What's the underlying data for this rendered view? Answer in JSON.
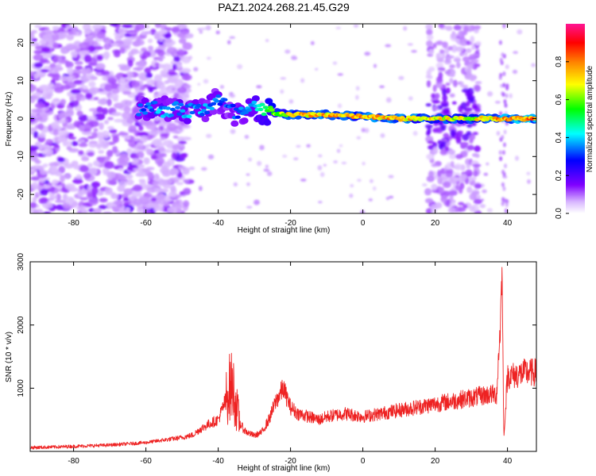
{
  "title": "PAZ1.2024.268.21.45.G29",
  "chart_data": [
    {
      "type": "heatmap",
      "xlabel": "Height of straight line (km)",
      "ylabel": "Frequency (Hz)",
      "xlim": [
        -92,
        48
      ],
      "ylim": [
        -25,
        25
      ],
      "xticks": [
        -80,
        -60,
        -40,
        -20,
        0,
        20,
        40
      ],
      "yticks": [
        -20,
        -10,
        0,
        10,
        20
      ],
      "colorbar": {
        "label": "Normalized spectral amplitude",
        "range": [
          0.0,
          1.0
        ],
        "ticks": [
          0.0,
          0.2,
          0.4,
          0.6,
          0.8
        ],
        "colormap": [
          "#ffffff",
          "#8000ff",
          "#0000ff",
          "#00ffff",
          "#00ff00",
          "#ffff00",
          "#ff8000",
          "#ff0000",
          "#ff00a0"
        ]
      },
      "dominant_ridge": [
        {
          "height_km": -62,
          "freq_hz": 3.0,
          "amp": 0.35
        },
        {
          "height_km": -55,
          "freq_hz": 2.5,
          "amp": 0.4
        },
        {
          "height_km": -45,
          "freq_hz": 2.0,
          "amp": 0.4
        },
        {
          "height_km": -40,
          "freq_hz": 5.0,
          "amp": 0.35
        },
        {
          "height_km": -35,
          "freq_hz": 1.0,
          "amp": 0.35
        },
        {
          "height_km": -30,
          "freq_hz": 2.5,
          "amp": 0.45
        },
        {
          "height_km": -25,
          "freq_hz": 1.5,
          "amp": 0.6
        },
        {
          "height_km": -20,
          "freq_hz": 1.0,
          "amp": 0.75
        },
        {
          "height_km": -10,
          "freq_hz": 1.0,
          "amp": 0.8
        },
        {
          "height_km": 0,
          "freq_hz": 0.5,
          "amp": 0.8
        },
        {
          "height_km": 10,
          "freq_hz": 0.0,
          "amp": 0.8
        },
        {
          "height_km": 20,
          "freq_hz": 0.0,
          "amp": 0.75
        },
        {
          "height_km": 30,
          "freq_hz": 0.0,
          "amp": 0.7
        },
        {
          "height_km": 40,
          "freq_hz": 0.0,
          "amp": 0.85
        },
        {
          "height_km": 48,
          "freq_hz": 0.0,
          "amp": 0.85
        }
      ]
    },
    {
      "type": "line",
      "xlabel": "Height of straight line (km)",
      "ylabel": "SNR (10 * v/v)",
      "xlim": [
        -92,
        48
      ],
      "ylim": [
        0,
        3000
      ],
      "xticks": [
        -80,
        -60,
        -40,
        -20,
        0,
        20,
        40
      ],
      "yticks": [
        1000,
        2000,
        3000
      ],
      "series": [
        {
          "color": "#ee2222",
          "x": [
            -92,
            -85,
            -80,
            -70,
            -60,
            -55,
            -50,
            -47,
            -45,
            -42,
            -40,
            -38,
            -37,
            -36,
            -35,
            -34,
            -33,
            -32,
            -30,
            -28,
            -26,
            -24,
            -22,
            -20,
            -18,
            -15,
            -12,
            -10,
            -5,
            0,
            5,
            10,
            15,
            20,
            25,
            30,
            35,
            37,
            38,
            38.5,
            39,
            40,
            42,
            45,
            48
          ],
          "y": [
            60,
            70,
            80,
            100,
            140,
            180,
            220,
            260,
            350,
            450,
            500,
            800,
            1000,
            1050,
            700,
            450,
            350,
            300,
            250,
            300,
            500,
            800,
            1000,
            700,
            600,
            550,
            500,
            550,
            600,
            550,
            600,
            650,
            700,
            750,
            800,
            850,
            900,
            900,
            2000,
            2900,
            200,
            1200,
            1200,
            1250,
            1250
          ]
        }
      ]
    }
  ]
}
